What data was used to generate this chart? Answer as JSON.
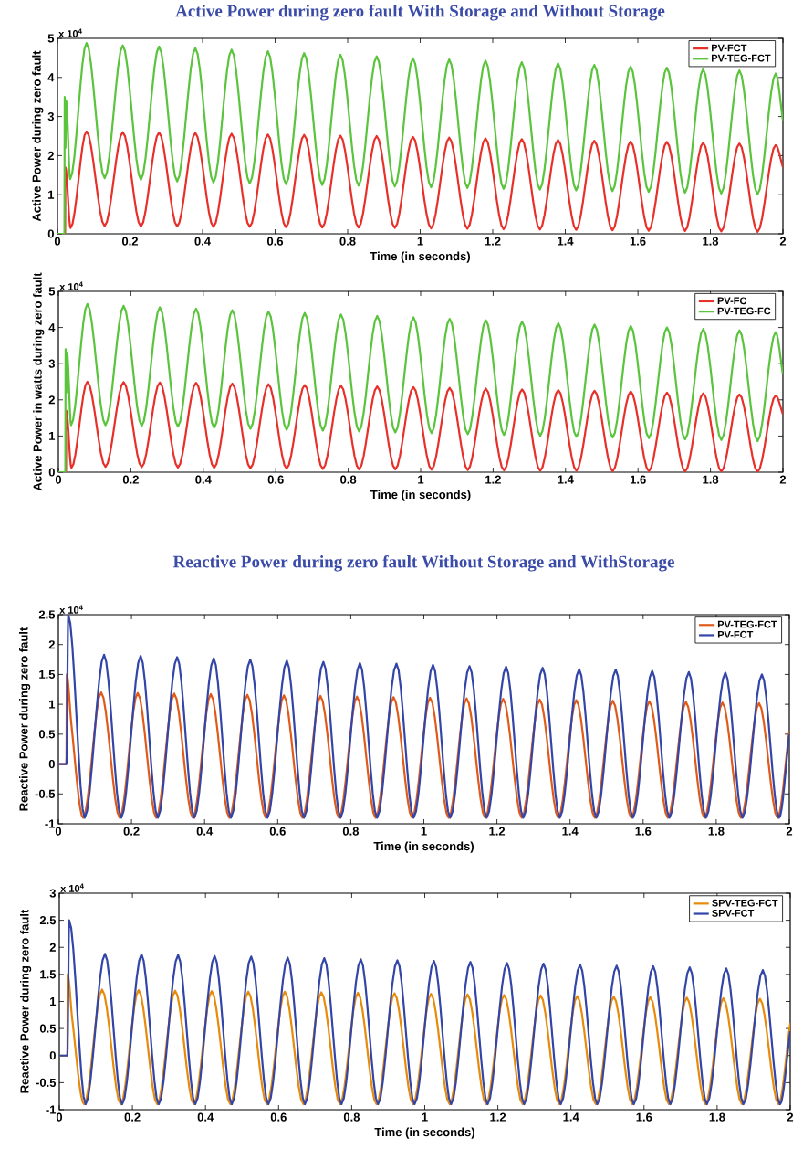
{
  "chart_data": [
    {
      "type": "line",
      "title": "Active Power during zero fault With Storage and Without Storage",
      "xlabel": "Time (in seconds)",
      "ylabel": "Active Power during zero fault",
      "annotations": [
        "x 10$^{4}$"
      ],
      "legend": "top right",
      "xlim": [
        0,
        2
      ],
      "xticks": [
        0,
        0.2,
        0.4,
        0.6,
        0.8,
        1,
        1.2,
        1.4,
        1.6,
        1.8,
        2
      ],
      "ylim": [
        0,
        5
      ],
      "yticks": [
        0,
        1,
        2,
        3,
        4,
        5
      ],
      "series": [
        {
          "name": "PV-FCT",
          "color": "#e8302a",
          "x": [
            0,
            0.021,
            0.022,
            0.036,
            0.08,
            0.13,
            0.18,
            0.23,
            0.28,
            0.33,
            0.38,
            0.43,
            0.48,
            0.53,
            0.58,
            0.63,
            0.68,
            0.73,
            0.78,
            0.83,
            0.88,
            0.93,
            0.98,
            1.03,
            1.08,
            1.13,
            1.18,
            1.23,
            1.28,
            1.33,
            1.38,
            1.43,
            1.48,
            1.53,
            1.58,
            1.63,
            1.68,
            1.73,
            1.78,
            1.83,
            1.88,
            1.93,
            1.98,
            2
          ],
          "values": [
            0,
            0,
            1.7,
            0.15,
            2.62,
            0.2,
            2.6,
            0.19,
            2.59,
            0.19,
            2.58,
            0.18,
            2.56,
            0.18,
            2.54,
            0.17,
            2.53,
            0.16,
            2.51,
            0.16,
            2.5,
            0.15,
            2.48,
            0.14,
            2.46,
            0.13,
            2.44,
            0.12,
            2.42,
            0.11,
            2.4,
            0.1,
            2.38,
            0.09,
            2.36,
            0.08,
            2.35,
            0.07,
            2.33,
            0.06,
            2.31,
            0.05,
            2.27,
            1.7
          ]
        },
        {
          "name": "PV-TEG-FCT",
          "color": "#5ac43c",
          "x": [
            0,
            0.019,
            0.02,
            0.022,
            0.024,
            0.035,
            0.08,
            0.13,
            0.18,
            0.23,
            0.28,
            0.33,
            0.38,
            0.43,
            0.48,
            0.53,
            0.58,
            0.63,
            0.68,
            0.73,
            0.78,
            0.83,
            0.88,
            0.93,
            0.98,
            1.03,
            1.08,
            1.13,
            1.18,
            1.23,
            1.28,
            1.33,
            1.38,
            1.43,
            1.48,
            1.53,
            1.58,
            1.63,
            1.68,
            1.73,
            1.78,
            1.83,
            1.88,
            1.93,
            1.98,
            2
          ],
          "values": [
            0,
            0,
            3.5,
            2.2,
            3.4,
            1.4,
            4.88,
            1.42,
            4.82,
            1.38,
            4.79,
            1.34,
            4.75,
            1.31,
            4.71,
            1.29,
            4.67,
            1.27,
            4.62,
            1.25,
            4.58,
            1.23,
            4.54,
            1.21,
            4.49,
            1.19,
            4.46,
            1.17,
            4.43,
            1.15,
            4.39,
            1.13,
            4.36,
            1.11,
            4.32,
            1.09,
            4.28,
            1.07,
            4.25,
            1.05,
            4.21,
            1.03,
            4.18,
            1.01,
            4.1,
            2.9
          ]
        }
      ]
    },
    {
      "type": "line",
      "xlabel": "Time (in seconds)",
      "ylabel": "Active Power in watts during zero fault",
      "annotations": [
        "x 10$^{4}$"
      ],
      "legend": "top right",
      "xlim": [
        0,
        2
      ],
      "xticks": [
        0,
        0.2,
        0.4,
        0.6,
        0.8,
        1,
        1.2,
        1.4,
        1.6,
        1.8,
        2
      ],
      "ylim": [
        0,
        5
      ],
      "yticks": [
        0,
        1,
        2,
        3,
        4,
        5
      ],
      "series": [
        {
          "name": "PV-FC",
          "color": "#e8302a",
          "x": [
            0,
            0.021,
            0.022,
            0.036,
            0.08,
            0.13,
            0.18,
            0.23,
            0.28,
            0.33,
            0.38,
            0.43,
            0.48,
            0.53,
            0.58,
            0.63,
            0.68,
            0.73,
            0.78,
            0.83,
            0.88,
            0.93,
            0.98,
            1.03,
            1.08,
            1.13,
            1.18,
            1.23,
            1.28,
            1.33,
            1.38,
            1.43,
            1.48,
            1.53,
            1.58,
            1.63,
            1.68,
            1.73,
            1.78,
            1.83,
            1.88,
            1.93,
            1.98,
            2
          ],
          "values": [
            0,
            0,
            1.7,
            0.12,
            2.5,
            0.15,
            2.49,
            0.14,
            2.48,
            0.13,
            2.47,
            0.12,
            2.45,
            0.11,
            2.43,
            0.1,
            2.41,
            0.09,
            2.39,
            0.08,
            2.37,
            0.08,
            2.35,
            0.07,
            2.33,
            0.06,
            2.31,
            0.05,
            2.29,
            0.04,
            2.27,
            0.04,
            2.25,
            0.03,
            2.23,
            0.03,
            2.2,
            0.02,
            2.18,
            0.02,
            2.15,
            0.01,
            2.12,
            1.6
          ]
        },
        {
          "name": "PV-TEG-FC",
          "color": "#5ac43c",
          "x": [
            0,
            0.019,
            0.02,
            0.022,
            0.024,
            0.035,
            0.08,
            0.13,
            0.18,
            0.23,
            0.28,
            0.33,
            0.38,
            0.43,
            0.48,
            0.53,
            0.58,
            0.63,
            0.68,
            0.73,
            0.78,
            0.83,
            0.88,
            0.93,
            0.98,
            1.03,
            1.08,
            1.13,
            1.18,
            1.23,
            1.28,
            1.33,
            1.38,
            1.43,
            1.48,
            1.53,
            1.58,
            1.63,
            1.68,
            1.73,
            1.78,
            1.83,
            1.88,
            1.93,
            1.98,
            2
          ],
          "values": [
            0,
            0,
            3.4,
            2.2,
            3.3,
            1.3,
            4.65,
            1.3,
            4.6,
            1.28,
            4.56,
            1.26,
            4.52,
            1.23,
            4.48,
            1.2,
            4.44,
            1.17,
            4.4,
            1.15,
            4.36,
            1.13,
            4.32,
            1.1,
            4.28,
            1.08,
            4.24,
            1.05,
            4.2,
            1.03,
            4.16,
            1.0,
            4.12,
            0.98,
            4.08,
            0.96,
            4.04,
            0.94,
            4.0,
            0.91,
            3.96,
            0.89,
            3.92,
            0.86,
            3.87,
            2.7
          ]
        }
      ]
    },
    {
      "type": "line",
      "title": "Reactive Power during zero fault Without Storage and WithStorage",
      "xlabel": "Time (in seconds)",
      "ylabel": "Reactive Power during zero fault",
      "annotations": [
        "x 10$^{4}$"
      ],
      "legend": "top right",
      "xlim": [
        0,
        2
      ],
      "xticks": [
        0,
        0.2,
        0.4,
        0.6,
        0.8,
        1,
        1.2,
        1.4,
        1.6,
        1.8,
        2
      ],
      "ylim": [
        -1,
        2.5
      ],
      "yticks": [
        -1,
        -0.5,
        0,
        0.5,
        1,
        1.5,
        2,
        2.5
      ],
      "series": [
        {
          "name": "PV-TEG-FCT",
          "color": "#e05a1a",
          "x": [
            0,
            0.022,
            0.023,
            0.035,
            0.068,
            0.117,
            0.168,
            0.217,
            0.268,
            0.317,
            0.368,
            0.417,
            0.468,
            0.517,
            0.568,
            0.617,
            0.668,
            0.717,
            0.768,
            0.817,
            0.868,
            0.917,
            0.968,
            1.017,
            1.068,
            1.117,
            1.168,
            1.217,
            1.268,
            1.317,
            1.368,
            1.417,
            1.468,
            1.517,
            1.568,
            1.617,
            1.668,
            1.717,
            1.768,
            1.817,
            1.868,
            1.917,
            1.968,
            2
          ],
          "values": [
            0,
            0,
            1.5,
            0.7,
            -0.9,
            1.2,
            -0.9,
            1.19,
            -0.9,
            1.18,
            -0.9,
            1.17,
            -0.9,
            1.16,
            -0.9,
            1.15,
            -0.9,
            1.14,
            -0.9,
            1.13,
            -0.9,
            1.12,
            -0.9,
            1.11,
            -0.9,
            1.1,
            -0.9,
            1.09,
            -0.9,
            1.08,
            -0.9,
            1.07,
            -0.9,
            1.06,
            -0.9,
            1.05,
            -0.9,
            1.04,
            -0.9,
            1.03,
            -0.9,
            1.02,
            -0.9,
            0.55
          ]
        },
        {
          "name": "PV-FCT",
          "color": "#3346a8",
          "x": [
            0,
            0.022,
            0.027,
            0.072,
            0.125,
            0.172,
            0.225,
            0.272,
            0.325,
            0.372,
            0.425,
            0.472,
            0.525,
            0.572,
            0.625,
            0.672,
            0.725,
            0.772,
            0.825,
            0.872,
            0.925,
            0.972,
            1.025,
            1.072,
            1.125,
            1.172,
            1.225,
            1.272,
            1.325,
            1.372,
            1.425,
            1.472,
            1.525,
            1.572,
            1.625,
            1.672,
            1.725,
            1.772,
            1.825,
            1.872,
            1.925,
            1.972,
            2
          ],
          "values": [
            0,
            0,
            2.5,
            -0.9,
            1.83,
            -0.9,
            1.81,
            -0.9,
            1.79,
            -0.9,
            1.77,
            -0.9,
            1.75,
            -0.9,
            1.73,
            -0.9,
            1.71,
            -0.9,
            1.69,
            -0.9,
            1.68,
            -0.9,
            1.66,
            -0.9,
            1.64,
            -0.9,
            1.63,
            -0.9,
            1.61,
            -0.9,
            1.59,
            -0.9,
            1.58,
            -0.9,
            1.56,
            -0.9,
            1.54,
            -0.9,
            1.53,
            -0.9,
            1.5,
            -0.9,
            0.5
          ]
        }
      ]
    },
    {
      "type": "line",
      "xlabel": "Time (in seconds)",
      "ylabel": "Reactive Power during zero fault",
      "annotations": [
        "x 10$^{4}$"
      ],
      "legend": "top right",
      "xlim": [
        0,
        2
      ],
      "xticks": [
        0,
        0.2,
        0.4,
        0.6,
        0.8,
        1,
        1.2,
        1.4,
        1.6,
        1.8,
        2
      ],
      "ylim": [
        -1,
        3
      ],
      "yticks": [
        -1,
        -0.5,
        0,
        0.5,
        1,
        1.5,
        2,
        2.5,
        3
      ],
      "series": [
        {
          "name": "SPV-TEG-FCT",
          "color": "#e88a0a",
          "x": [
            0,
            0.022,
            0.023,
            0.035,
            0.068,
            0.117,
            0.168,
            0.217,
            0.268,
            0.317,
            0.368,
            0.417,
            0.468,
            0.517,
            0.568,
            0.617,
            0.668,
            0.717,
            0.768,
            0.817,
            0.868,
            0.917,
            0.968,
            1.017,
            1.068,
            1.117,
            1.168,
            1.217,
            1.268,
            1.317,
            1.368,
            1.417,
            1.468,
            1.517,
            1.568,
            1.617,
            1.668,
            1.717,
            1.768,
            1.817,
            1.868,
            1.917,
            1.968,
            2
          ],
          "values": [
            0,
            0,
            1.5,
            0.7,
            -0.9,
            1.22,
            -0.9,
            1.21,
            -0.9,
            1.2,
            -0.9,
            1.19,
            -0.9,
            1.18,
            -0.9,
            1.18,
            -0.9,
            1.17,
            -0.9,
            1.16,
            -0.9,
            1.15,
            -0.9,
            1.14,
            -0.9,
            1.13,
            -0.9,
            1.12,
            -0.9,
            1.11,
            -0.9,
            1.1,
            -0.9,
            1.09,
            -0.9,
            1.08,
            -0.9,
            1.07,
            -0.9,
            1.06,
            -0.9,
            1.05,
            -0.9,
            0.6
          ]
        },
        {
          "name": "SPV-FCT",
          "color": "#3346a8",
          "x": [
            0,
            0.022,
            0.027,
            0.072,
            0.125,
            0.172,
            0.225,
            0.272,
            0.325,
            0.372,
            0.425,
            0.472,
            0.525,
            0.572,
            0.625,
            0.672,
            0.725,
            0.772,
            0.825,
            0.872,
            0.925,
            0.972,
            1.025,
            1.072,
            1.125,
            1.172,
            1.225,
            1.272,
            1.325,
            1.372,
            1.425,
            1.472,
            1.525,
            1.572,
            1.625,
            1.672,
            1.725,
            1.772,
            1.825,
            1.872,
            1.925,
            1.972,
            2
          ],
          "values": [
            0,
            0,
            2.5,
            -0.9,
            1.88,
            -0.9,
            1.87,
            -0.9,
            1.86,
            -0.9,
            1.84,
            -0.9,
            1.83,
            -0.9,
            1.81,
            -0.9,
            1.8,
            -0.9,
            1.78,
            -0.9,
            1.76,
            -0.9,
            1.75,
            -0.9,
            1.73,
            -0.9,
            1.71,
            -0.9,
            1.7,
            -0.9,
            1.68,
            -0.9,
            1.66,
            -0.9,
            1.65,
            -0.9,
            1.63,
            -0.9,
            1.61,
            -0.9,
            1.58,
            -0.9,
            0.45
          ]
        }
      ]
    }
  ]
}
